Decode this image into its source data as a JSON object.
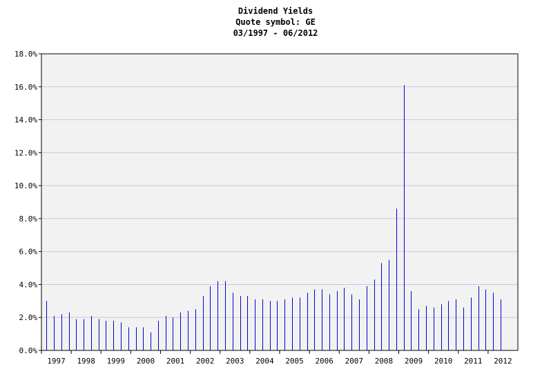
{
  "chart_data": {
    "type": "bar",
    "title": "Dividend Yields",
    "subtitle": "Quote symbol: GE",
    "date_range": "03/1997 - 06/2012",
    "xlabel": "",
    "ylabel": "",
    "ylim": [
      0,
      18
    ],
    "y_ticks": [
      "0.0%",
      "2.0%",
      "4.0%",
      "6.0%",
      "8.0%",
      "10.0%",
      "12.0%",
      "14.0%",
      "16.0%",
      "18.0%"
    ],
    "x_ticks": [
      "1997",
      "1998",
      "1999",
      "2000",
      "2001",
      "2002",
      "2003",
      "2004",
      "2005",
      "2006",
      "2007",
      "2008",
      "2009",
      "2010",
      "2011",
      "2012"
    ],
    "grid": true,
    "colors": {
      "bar": "#0000cc",
      "plot_bg": "#f2f2f2",
      "grid": "#c8c8e6"
    },
    "x": [
      "03/1997",
      "06/1997",
      "09/1997",
      "12/1997",
      "03/1998",
      "06/1998",
      "09/1998",
      "12/1998",
      "03/1999",
      "06/1999",
      "09/1999",
      "12/1999",
      "03/2000",
      "06/2000",
      "09/2000",
      "12/2000",
      "03/2001",
      "06/2001",
      "09/2001",
      "12/2001",
      "03/2002",
      "06/2002",
      "09/2002",
      "12/2002",
      "03/2003",
      "06/2003",
      "09/2003",
      "12/2003",
      "03/2004",
      "06/2004",
      "09/2004",
      "12/2004",
      "03/2005",
      "06/2005",
      "09/2005",
      "12/2005",
      "03/2006",
      "06/2006",
      "09/2006",
      "12/2006",
      "03/2007",
      "06/2007",
      "09/2007",
      "12/2007",
      "03/2008",
      "06/2008",
      "09/2008",
      "12/2008",
      "03/2009",
      "06/2009",
      "09/2009",
      "12/2009",
      "03/2010",
      "06/2010",
      "09/2010",
      "12/2010",
      "03/2011",
      "06/2011",
      "09/2011",
      "12/2011",
      "03/2012",
      "06/2012"
    ],
    "values": [
      3.0,
      2.1,
      2.2,
      2.3,
      1.9,
      1.9,
      2.1,
      1.9,
      1.8,
      1.8,
      1.7,
      1.4,
      1.4,
      1.4,
      1.1,
      1.8,
      2.1,
      2.0,
      2.3,
      2.4,
      2.5,
      3.3,
      3.9,
      4.2,
      4.2,
      3.5,
      3.3,
      3.3,
      3.1,
      3.1,
      3.0,
      3.0,
      3.1,
      3.2,
      3.2,
      3.5,
      3.7,
      3.7,
      3.4,
      3.6,
      3.8,
      3.4,
      3.1,
      3.9,
      4.3,
      5.3,
      5.5,
      8.6,
      16.1,
      3.6,
      2.5,
      2.7,
      2.6,
      2.8,
      3.0,
      3.1,
      2.6,
      3.2,
      3.9,
      3.7,
      3.5,
      3.1
    ]
  }
}
